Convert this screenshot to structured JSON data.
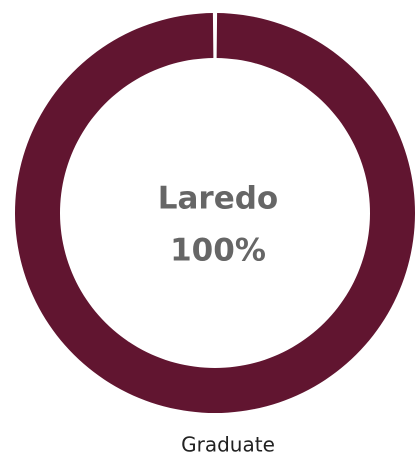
{
  "chart_data": {
    "type": "donut",
    "title": "Laredo",
    "categories": [
      "Graduate"
    ],
    "values": [
      100
    ],
    "value_labels": [
      "100%"
    ],
    "colors": [
      "#611530"
    ]
  }
}
